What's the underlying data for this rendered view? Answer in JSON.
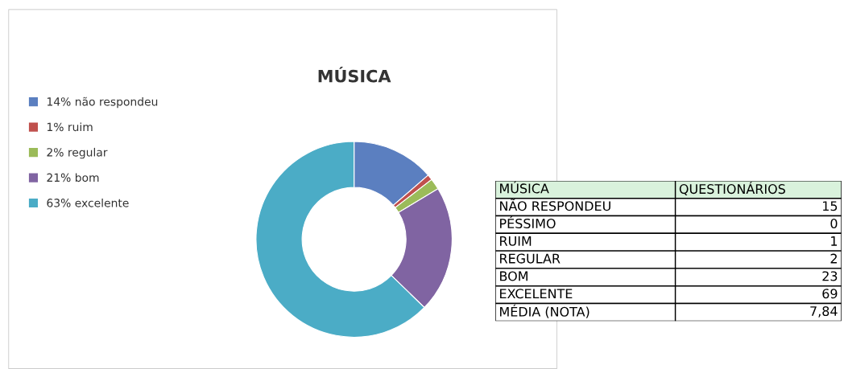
{
  "chart_data": [
    {
      "type": "donut",
      "title": "MÚSICA",
      "categories": [
        "14% não respondeu",
        "1% ruim",
        "2% regular",
        "21% bom",
        "63% excelente"
      ],
      "values": [
        15,
        1,
        2,
        23,
        69
      ],
      "colors": [
        "#5b7fc0",
        "#c0504d",
        "#9bbb59",
        "#8064a2",
        "#4bacc6"
      ],
      "legend": "left"
    },
    {
      "type": "other",
      "annotations": [
        "MÚSICA",
        "QUESTIONÁRIOS"
      ],
      "categories": [
        "NÃO RESPONDEU",
        "PÉSSIMO",
        "RUIM",
        "REGULAR",
        "BOM",
        "EXCELENTE",
        "MÉDIA (NOTA)"
      ],
      "value_labels": [
        "15",
        "0",
        "1",
        "2",
        "23",
        "69",
        "7,84"
      ]
    }
  ]
}
